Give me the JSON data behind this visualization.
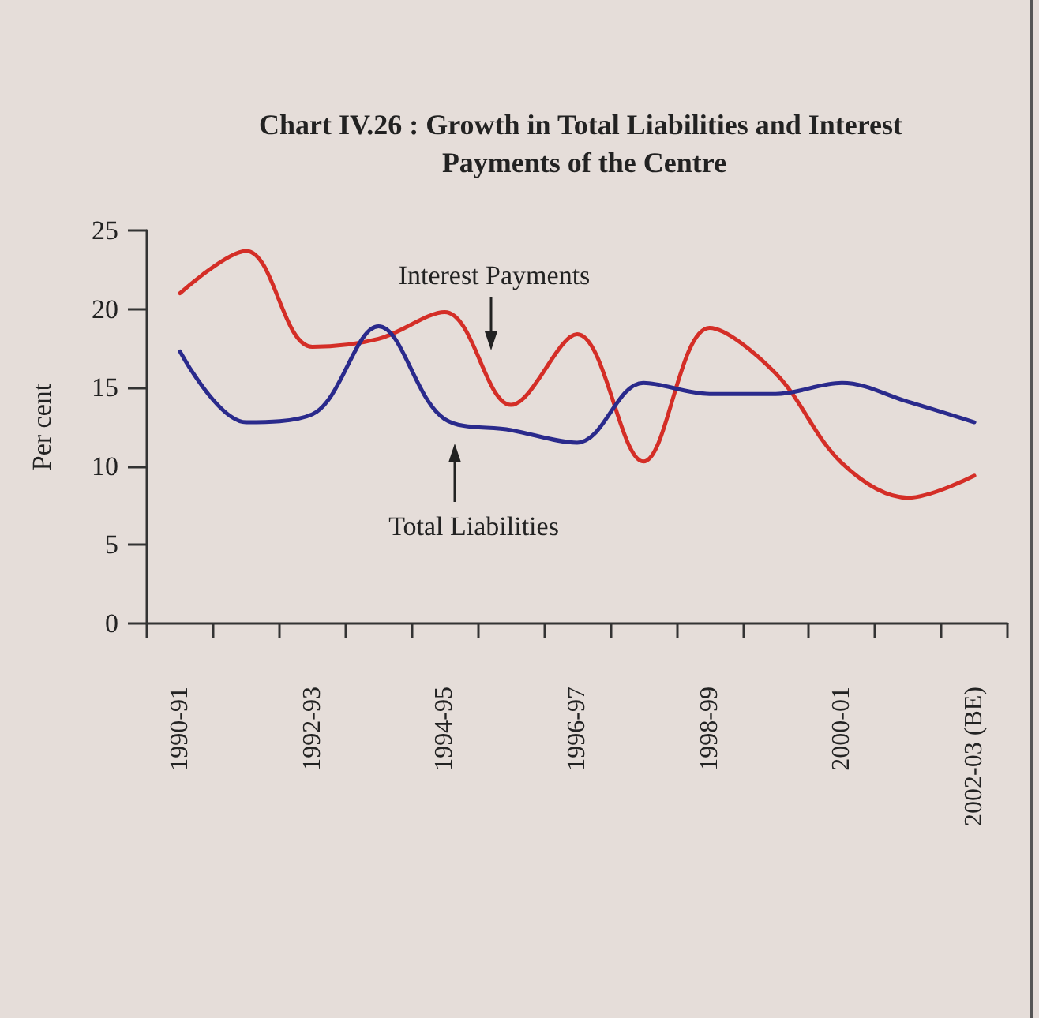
{
  "chart_data": {
    "type": "line",
    "title": "Chart IV.26 : Growth in Total Liabilities and Interest Payments of the Centre",
    "ylabel": "Per cent",
    "categories": [
      "1990-91",
      null,
      "1992-93",
      null,
      "1994-95",
      null,
      "1996-97",
      null,
      "1998-99",
      null,
      "2000-01",
      null,
      "2002-03 (BE)"
    ],
    "series": [
      {
        "name": "Interest Payments",
        "color": "#d42e27",
        "values": [
          21.0,
          23.7,
          17.6,
          18.1,
          19.8,
          13.9,
          18.4,
          10.3,
          18.8,
          15.9,
          10.2,
          8.0,
          9.4
        ]
      },
      {
        "name": "Total Liabilities",
        "color": "#2a2a8c",
        "values": [
          17.3,
          12.8,
          13.3,
          18.9,
          13.0,
          12.3,
          11.5,
          15.3,
          14.6,
          14.6,
          15.3,
          14.1,
          12.8
        ]
      }
    ],
    "ylim": [
      0,
      25
    ],
    "yticks": [
      0,
      5,
      10,
      15,
      20,
      25
    ],
    "grid": false,
    "legend": false,
    "marker": "none",
    "line_style": "solid"
  }
}
